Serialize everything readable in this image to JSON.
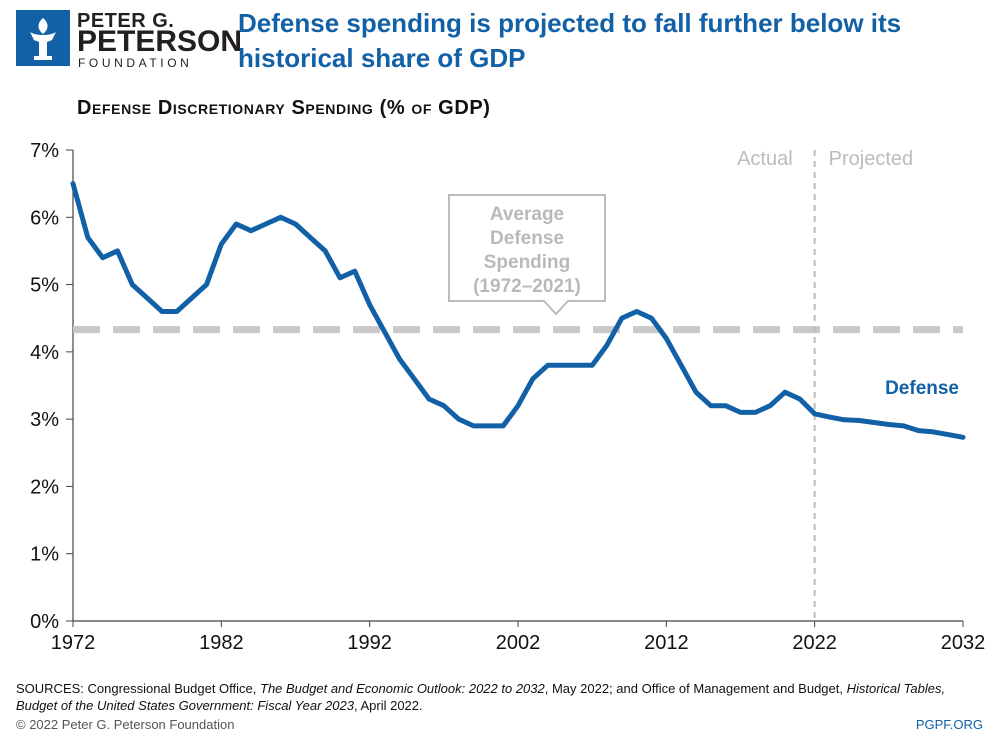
{
  "logo": {
    "line1": "PETER G.",
    "line2": "PETERSON",
    "line3": "FOUNDATION"
  },
  "header": {
    "title": "Defense spending is projected to fall further below its historical share of GDP"
  },
  "colors": {
    "brand": "#1261a6",
    "average_line": "#c8c8c8",
    "divider": "#bdbdbd",
    "label_gray": "#bcbcbc"
  },
  "chart_data": {
    "type": "line",
    "title": "Defense Discretionary Spending (% of GDP)",
    "xlabel": "",
    "ylabel": "",
    "xlim": [
      1972,
      2032
    ],
    "ylim": [
      0,
      7
    ],
    "x_ticks": [
      1972,
      1982,
      1992,
      2002,
      2012,
      2022,
      2032
    ],
    "y_ticks": [
      0,
      1,
      2,
      3,
      4,
      5,
      6,
      7
    ],
    "y_tick_labels": [
      "0%",
      "1%",
      "2%",
      "3%",
      "4%",
      "5%",
      "6%",
      "7%"
    ],
    "grid": false,
    "series": [
      {
        "name": "Defense",
        "x": [
          1972,
          1973,
          1974,
          1975,
          1976,
          1977,
          1978,
          1979,
          1980,
          1981,
          1982,
          1983,
          1984,
          1985,
          1986,
          1987,
          1988,
          1989,
          1990,
          1991,
          1992,
          1993,
          1994,
          1995,
          1996,
          1997,
          1998,
          1999,
          2000,
          2001,
          2002,
          2003,
          2004,
          2005,
          2006,
          2007,
          2008,
          2009,
          2010,
          2011,
          2012,
          2013,
          2014,
          2015,
          2016,
          2017,
          2018,
          2019,
          2020,
          2021,
          2022,
          2023,
          2024,
          2025,
          2026,
          2027,
          2028,
          2029,
          2030,
          2031,
          2032
        ],
        "values": [
          6.5,
          5.7,
          5.4,
          5.5,
          5.0,
          4.8,
          4.6,
          4.6,
          4.8,
          5.0,
          5.6,
          5.9,
          5.8,
          5.9,
          6.0,
          5.9,
          5.7,
          5.5,
          5.1,
          5.2,
          4.7,
          4.3,
          3.9,
          3.6,
          3.3,
          3.2,
          3.0,
          2.9,
          2.9,
          2.9,
          3.2,
          3.6,
          3.8,
          3.8,
          3.8,
          3.8,
          4.1,
          4.5,
          4.6,
          4.5,
          4.2,
          3.8,
          3.4,
          3.2,
          3.2,
          3.1,
          3.1,
          3.2,
          3.4,
          3.3,
          3.08,
          3.03,
          2.99,
          2.98,
          2.95,
          2.92,
          2.9,
          2.83,
          2.81,
          2.77,
          2.73
        ]
      }
    ],
    "average": {
      "value": 4.33,
      "label_lines": [
        "Average",
        "Defense",
        "Spending",
        "(1972–2021)"
      ]
    },
    "divider": {
      "x": 2022,
      "left_label": "Actual",
      "right_label": "Projected"
    },
    "series_label": "Defense"
  },
  "footer": {
    "sources_prefix": "SOURCES: Congressional Budget Office, ",
    "source1_title": "The Budget and Economic Outlook: 2022 to 2032",
    "sources_mid": ", May 2022; and Office of Management and Budget, ",
    "source2_title": "Historical Tables, Budget of the United States Government: Fiscal Year 2023",
    "sources_suffix": ", April 2022.",
    "copyright": "© 2022 Peter G. Peterson Foundation",
    "site": "PGPF.ORG"
  }
}
